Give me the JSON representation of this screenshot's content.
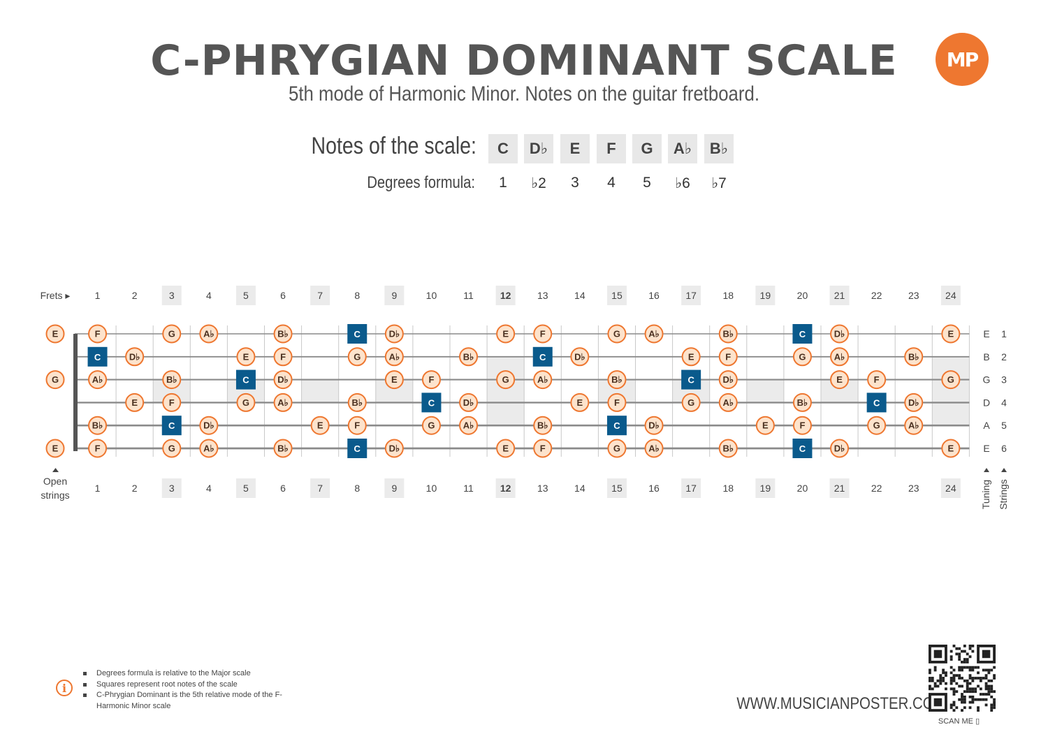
{
  "header": {
    "title": "C-PHRYGIAN DOMINANT SCALE",
    "subtitle": "5th mode of Harmonic Minor. Notes on the guitar fretboard.",
    "logo": "MP"
  },
  "scale": {
    "notes_label": "Notes of the scale:",
    "degrees_label": "Degrees formula:",
    "notes": [
      "C",
      "D♭",
      "E",
      "F",
      "G",
      "A♭",
      "B♭"
    ],
    "degrees": [
      "1",
      "♭2",
      "3",
      "4",
      "5",
      "♭6",
      "♭7"
    ]
  },
  "fretboard": {
    "frets_label": "Frets ▸",
    "open_strings_label": "Open strings",
    "open_strings_line1": "Open",
    "open_strings_line2": "strings",
    "tuning_label": "Tuning",
    "strings_label": "Strings",
    "fret_numbers": [
      "1",
      "2",
      "3",
      "4",
      "5",
      "6",
      "7",
      "8",
      "9",
      "10",
      "11",
      "12",
      "13",
      "14",
      "15",
      "16",
      "17",
      "18",
      "19",
      "20",
      "21",
      "22",
      "23",
      "24"
    ],
    "marked_frets": [
      3,
      5,
      7,
      9,
      12,
      15,
      17,
      19,
      21,
      24
    ],
    "tuning": [
      "E",
      "B",
      "G",
      "D",
      "A",
      "E"
    ],
    "string_numbers": [
      "1",
      "2",
      "3",
      "4",
      "5",
      "6"
    ],
    "open_notes": [
      "E",
      "",
      "G",
      "",
      "",
      "E"
    ],
    "strings": [
      [
        "F",
        "",
        "G",
        "Ab",
        "",
        "Bb",
        "",
        "C",
        "Db",
        "",
        "",
        "E",
        "F",
        "",
        "G",
        "Ab",
        "",
        "Bb",
        "",
        "C",
        "Db",
        "",
        "",
        "E"
      ],
      [
        "C",
        "Db",
        "",
        "",
        "E",
        "F",
        "",
        "G",
        "Ab",
        "",
        "Bb",
        "",
        "C",
        "Db",
        "",
        "",
        "E",
        "F",
        "",
        "G",
        "Ab",
        "",
        "Bb",
        ""
      ],
      [
        "Ab",
        "",
        "Bb",
        "",
        "C",
        "Db",
        "",
        "",
        "E",
        "F",
        "",
        "G",
        "Ab",
        "",
        "Bb",
        "",
        "C",
        "Db",
        "",
        "",
        "E",
        "F",
        "",
        "G"
      ],
      [
        "",
        "E",
        "F",
        "",
        "G",
        "Ab",
        "",
        "Bb",
        "",
        "C",
        "Db",
        "",
        "",
        "E",
        "F",
        "",
        "G",
        "Ab",
        "",
        "Bb",
        "",
        "C",
        "Db",
        ""
      ],
      [
        "Bb",
        "",
        "C",
        "Db",
        "",
        "",
        "E",
        "F",
        "",
        "G",
        "Ab",
        "",
        "Bb",
        "",
        "C",
        "Db",
        "",
        "",
        "E",
        "F",
        "",
        "G",
        "Ab",
        ""
      ],
      [
        "F",
        "",
        "G",
        "Ab",
        "",
        "Bb",
        "",
        "C",
        "Db",
        "",
        "",
        "E",
        "F",
        "",
        "G",
        "Ab",
        "",
        "Bb",
        "",
        "C",
        "Db",
        "",
        "",
        "E"
      ]
    ],
    "root_note": "C",
    "colors": {
      "accent": "#ee7730",
      "note_fill": "#fde3cc",
      "root_fill": "#0a5a8c",
      "marker_fill": "#ebebeb",
      "string_color": "#8a8a8a",
      "nut_color": "#555555"
    }
  },
  "footer": {
    "info": [
      "Degrees formula is relative to the Major scale",
      "Squares represent root notes of the scale",
      "C-Phrygian Dominant is the 5th relative mode of the F-Harmonic Minor scale"
    ],
    "website": "WWW.MUSICIANPOSTER.COM",
    "scan_label": "SCAN ME"
  }
}
